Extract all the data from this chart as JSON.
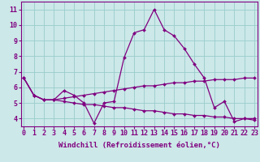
{
  "x": [
    0,
    1,
    2,
    3,
    4,
    5,
    6,
    7,
    8,
    9,
    10,
    11,
    12,
    13,
    14,
    15,
    16,
    17,
    18,
    19,
    20,
    21,
    22,
    23
  ],
  "line_main": [
    6.6,
    5.5,
    5.2,
    5.2,
    5.8,
    5.5,
    5.0,
    3.7,
    5.0,
    5.1,
    7.9,
    9.5,
    9.7,
    11.0,
    9.7,
    9.3,
    8.5,
    7.5,
    6.6,
    4.7,
    5.1,
    3.8,
    4.0,
    4.0
  ],
  "line_upper": [
    6.6,
    5.5,
    5.2,
    5.2,
    5.3,
    5.4,
    5.5,
    5.6,
    5.7,
    5.8,
    5.9,
    6.0,
    6.1,
    6.1,
    6.2,
    6.3,
    6.3,
    6.4,
    6.4,
    6.5,
    6.5,
    6.5,
    6.6,
    6.6
  ],
  "line_lower": [
    6.6,
    5.5,
    5.2,
    5.2,
    5.1,
    5.0,
    4.9,
    4.9,
    4.8,
    4.7,
    4.7,
    4.6,
    4.5,
    4.5,
    4.4,
    4.3,
    4.3,
    4.2,
    4.2,
    4.1,
    4.1,
    4.0,
    4.0,
    3.9
  ],
  "line_color": "#800080",
  "bg_color": "#cce8e8",
  "grid_color": "#99cccc",
  "xlabel": "Windchill (Refroidissement éolien,°C)",
  "yticks": [
    4,
    5,
    6,
    7,
    8,
    9,
    10,
    11
  ],
  "xticks": [
    0,
    1,
    2,
    3,
    4,
    5,
    6,
    7,
    8,
    9,
    10,
    11,
    12,
    13,
    14,
    15,
    16,
    17,
    18,
    19,
    20,
    21,
    22,
    23
  ],
  "ylim": [
    3.5,
    11.5
  ],
  "xlim": [
    -0.3,
    23.3
  ],
  "xlabel_fontsize": 6.5,
  "tick_fontsize": 6,
  "markersize": 2.0,
  "linewidth": 0.9
}
